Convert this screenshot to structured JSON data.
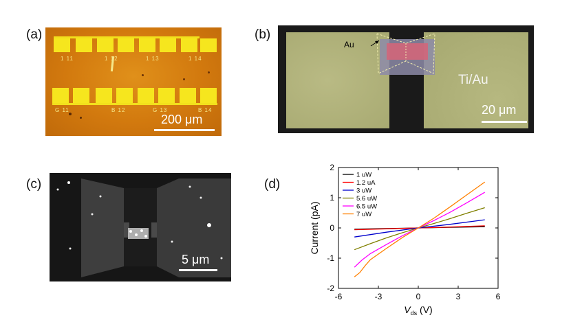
{
  "panels": {
    "a": {
      "label": "(a)",
      "scale_bar": "200 μm",
      "pad_labels_top": [
        "1 11",
        "1 12",
        "1 13",
        "1 14"
      ],
      "pad_labels_bottom": [
        "G 11",
        "B 12",
        "G 13",
        "B 14"
      ]
    },
    "b": {
      "label": "(b)",
      "au_label": "Au",
      "tiau_label": "Ti/Au",
      "scale_bar": "20 μm"
    },
    "c": {
      "label": "(c)",
      "scale_bar": "5 μm"
    },
    "d": {
      "label": "(d)"
    }
  },
  "chart_data": {
    "type": "line",
    "xlabel_main": "V",
    "xlabel_sub": "ds",
    "xlabel_unit": "(V)",
    "ylabel": "Current (pA)",
    "xlim": [
      -6,
      6
    ],
    "ylim": [
      -2,
      2
    ],
    "xticks": [
      -6,
      -3,
      0,
      3,
      6
    ],
    "yticks": [
      -2,
      -1,
      0,
      1,
      2
    ],
    "legend_position": "top-left",
    "series": [
      {
        "name": "1 uW",
        "color": "#000000",
        "x": [
          -4.8,
          -2.4,
          0,
          2.4,
          5.0
        ],
        "y": [
          -0.04,
          -0.02,
          0,
          0.02,
          0.04
        ]
      },
      {
        "name": "1.2 uA",
        "color": "#ff0000",
        "x": [
          -4.8,
          -2.4,
          0,
          2.4,
          5.0
        ],
        "y": [
          -0.06,
          -0.03,
          0,
          0.03,
          0.07
        ]
      },
      {
        "name": "3 uW",
        "color": "#0000cc",
        "x": [
          -4.8,
          -2.4,
          0,
          2.4,
          5.0
        ],
        "y": [
          -0.3,
          -0.14,
          0,
          0.12,
          0.27
        ]
      },
      {
        "name": "5.6 uW",
        "color": "#808000",
        "x": [
          -4.8,
          -3.6,
          -2.4,
          -1.2,
          0,
          1.2,
          2.4,
          3.6,
          5.0
        ],
        "y": [
          -0.72,
          -0.52,
          -0.33,
          -0.16,
          0,
          0.15,
          0.31,
          0.48,
          0.67
        ]
      },
      {
        "name": "6.5 uW",
        "color": "#ff00ff",
        "x": [
          -4.8,
          -4.2,
          -3.6,
          -2.4,
          -1.2,
          0,
          1.2,
          2.4,
          3.6,
          5.0
        ],
        "y": [
          -1.3,
          -1.05,
          -0.85,
          -0.55,
          -0.26,
          0,
          0.25,
          0.52,
          0.82,
          1.18
        ]
      },
      {
        "name": "7 uW",
        "color": "#ff8000",
        "x": [
          -4.8,
          -4.4,
          -4.0,
          -3.6,
          -2.4,
          -1.2,
          0,
          1.2,
          2.4,
          3.6,
          5.0
        ],
        "y": [
          -1.62,
          -1.48,
          -1.25,
          -1.05,
          -0.68,
          -0.32,
          0,
          0.33,
          0.7,
          1.08,
          1.52
        ]
      }
    ]
  }
}
